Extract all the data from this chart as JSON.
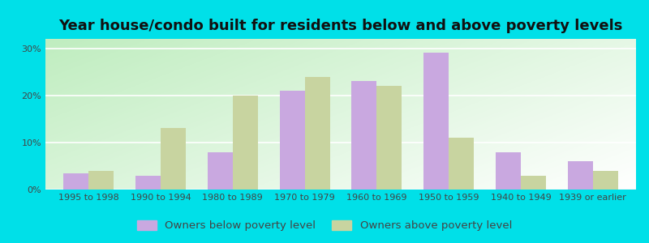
{
  "title": "Year house/condo built for residents below and above poverty levels",
  "categories": [
    "1995 to 1998",
    "1990 to 1994",
    "1980 to 1989",
    "1970 to 1979",
    "1960 to 1969",
    "1950 to 1959",
    "1940 to 1949",
    "1939 or earlier"
  ],
  "below_poverty": [
    3.5,
    3.0,
    8.0,
    21.0,
    23.0,
    29.0,
    8.0,
    6.0
  ],
  "above_poverty": [
    4.0,
    13.0,
    20.0,
    24.0,
    22.0,
    11.0,
    3.0,
    4.0
  ],
  "below_color": "#c9a8e0",
  "above_color": "#c8d4a0",
  "yticks": [
    0,
    10,
    20,
    30
  ],
  "ylim": [
    0,
    32
  ],
  "outer_bg": "#00e0e8",
  "legend_below": "Owners below poverty level",
  "legend_above": "Owners above poverty level",
  "bar_width": 0.35,
  "title_fontsize": 13,
  "tick_fontsize": 8.0,
  "legend_fontsize": 9.5,
  "bg_left": "#c8e6c0",
  "bg_right": "#f5fff5"
}
